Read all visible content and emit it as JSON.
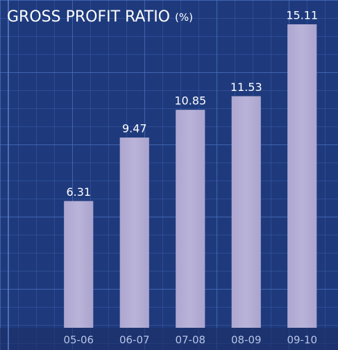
{
  "chart_data": {
    "type": "bar",
    "title": "GROSS PROFIT RATIO",
    "unit": "(%)",
    "categories": [
      "05-06",
      "06-07",
      "07-08",
      "08-09",
      "09-10"
    ],
    "values": [
      6.31,
      9.47,
      10.85,
      11.53,
      15.11
    ],
    "color": "#b4aed4",
    "grid": true
  }
}
